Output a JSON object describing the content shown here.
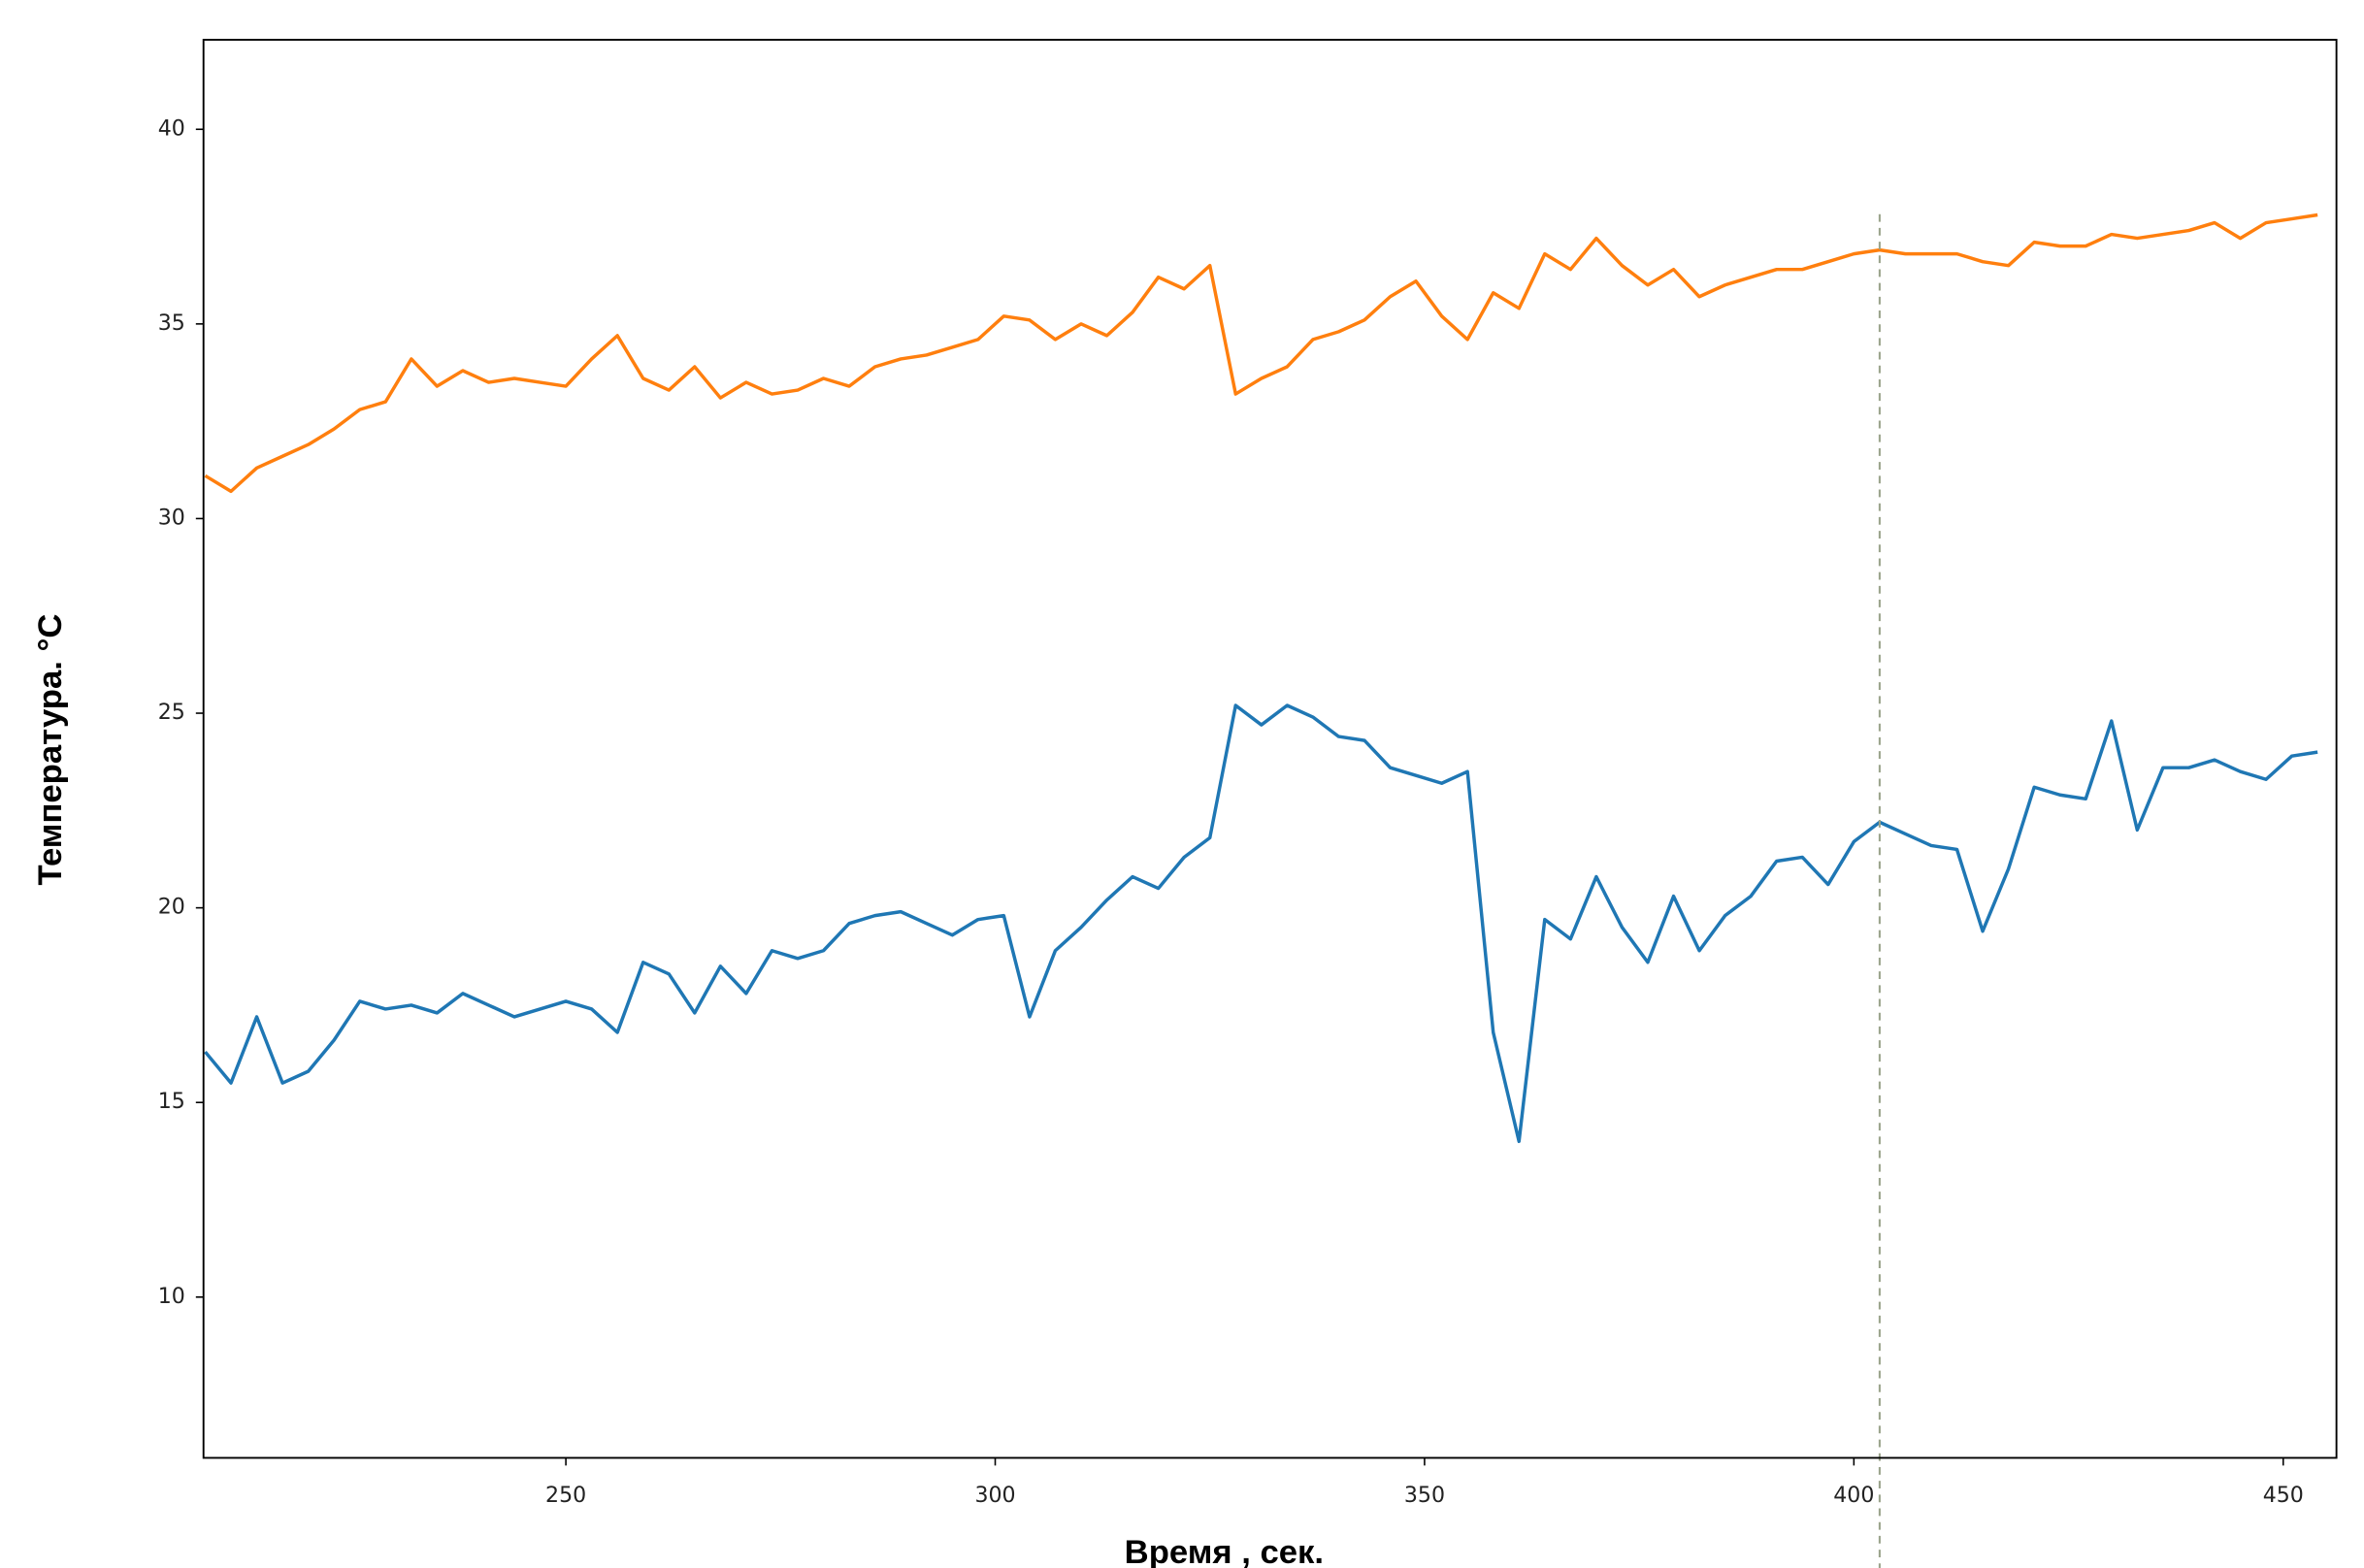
{
  "chart_data": {
    "type": "line",
    "xlabel": "Время , сек.",
    "ylabel": "Температура. °C",
    "xlim": [
      207.8,
      456.2
    ],
    "ylim": [
      5.87,
      42.3
    ],
    "xticks": [
      250,
      300,
      350,
      400,
      450
    ],
    "yticks": [
      10,
      15,
      20,
      25,
      30,
      35,
      40
    ],
    "grid": false,
    "vline": {
      "value": 403,
      "color": "#9aa38a"
    },
    "x": [
      208,
      211,
      214,
      217,
      220,
      223,
      226,
      229,
      232,
      235,
      238,
      241,
      244,
      247,
      250,
      253,
      256,
      259,
      262,
      265,
      268,
      271,
      274,
      277,
      280,
      283,
      286,
      289,
      292,
      295,
      298,
      301,
      304,
      307,
      310,
      313,
      316,
      319,
      322,
      325,
      328,
      331,
      334,
      337,
      340,
      343,
      346,
      349,
      352,
      355,
      358,
      361,
      364,
      367,
      370,
      373,
      376,
      379,
      382,
      385,
      388,
      391,
      394,
      397,
      400,
      403,
      406,
      409,
      412,
      415,
      418,
      421,
      424,
      427,
      430,
      433,
      436,
      439,
      442,
      445,
      448,
      451,
      454
    ],
    "series": [
      {
        "color": "#ff7f0e",
        "values": [
          31.1,
          30.7,
          31.3,
          31.6,
          31.9,
          32.3,
          32.8,
          33.0,
          34.1,
          33.4,
          33.8,
          33.5,
          33.6,
          33.5,
          33.4,
          34.1,
          34.7,
          33.6,
          33.3,
          33.9,
          33.1,
          33.5,
          33.2,
          33.3,
          33.6,
          33.4,
          33.9,
          34.1,
          34.2,
          34.4,
          34.6,
          35.2,
          35.1,
          34.6,
          35.0,
          34.7,
          35.3,
          36.2,
          35.9,
          36.5,
          33.2,
          33.6,
          33.9,
          34.6,
          34.8,
          35.1,
          35.7,
          36.1,
          35.2,
          34.6,
          35.8,
          35.4,
          36.8,
          36.4,
          37.2,
          36.5,
          36.0,
          36.4,
          35.7,
          36.0,
          36.2,
          36.4,
          36.4,
          36.6,
          36.8,
          36.9,
          36.8,
          36.8,
          36.8,
          36.6,
          36.5,
          37.1,
          37.0,
          37.0,
          37.3,
          37.2,
          37.3,
          37.4,
          37.6,
          37.2,
          37.6,
          37.7,
          37.8
        ]
      },
      {
        "color": "#1f77b4",
        "values": [
          16.3,
          15.5,
          17.2,
          15.5,
          15.8,
          16.6,
          17.6,
          17.4,
          17.5,
          17.3,
          17.8,
          17.5,
          17.2,
          17.4,
          17.6,
          17.4,
          16.8,
          18.6,
          18.3,
          17.3,
          18.5,
          17.8,
          18.9,
          18.7,
          18.9,
          19.6,
          19.8,
          19.9,
          19.6,
          19.3,
          19.7,
          19.8,
          17.2,
          18.9,
          19.5,
          20.2,
          20.8,
          20.5,
          21.3,
          21.8,
          25.2,
          24.7,
          25.2,
          24.9,
          24.4,
          24.3,
          23.6,
          23.4,
          23.2,
          23.5,
          16.8,
          14.0,
          19.7,
          19.2,
          20.8,
          19.5,
          18.6,
          20.3,
          18.9,
          19.8,
          20.3,
          21.2,
          21.3,
          20.6,
          21.7,
          22.2,
          21.9,
          21.6,
          21.5,
          19.4,
          21.0,
          23.1,
          22.9,
          22.8,
          24.8,
          22.0,
          23.6,
          23.6,
          23.8,
          23.5,
          23.3,
          23.9,
          24.0
        ]
      }
    ]
  }
}
